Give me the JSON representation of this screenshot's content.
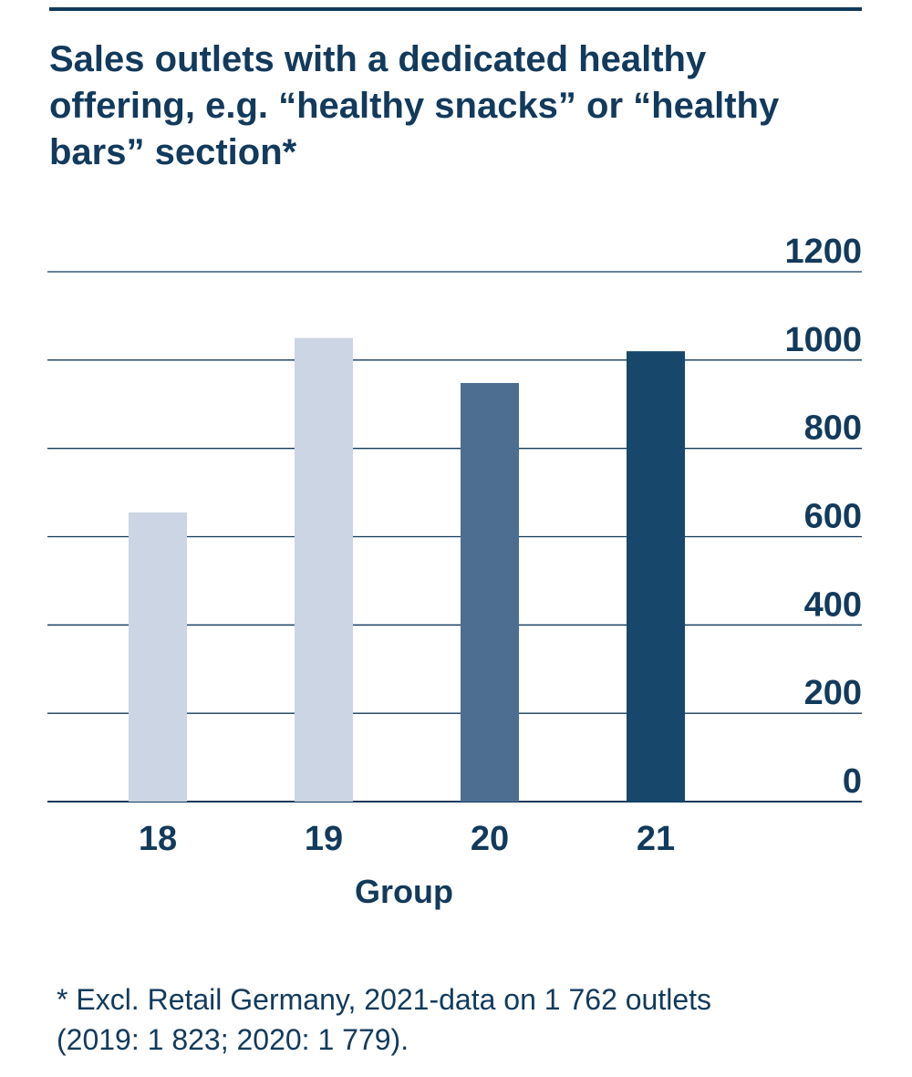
{
  "chart_data": {
    "type": "bar",
    "title": "Sales outlets with a dedicated healthy offering, e.g. “healthy snacks” or “healthy bars” section*",
    "xlabel": "Group",
    "ylabel": "",
    "categories": [
      "18",
      "19",
      "20",
      "21"
    ],
    "values": [
      655,
      1050,
      948,
      1020
    ],
    "colors": [
      "#ccd5e3",
      "#ccd5e3",
      "#4d6e91",
      "#17476b"
    ],
    "ylim": [
      0,
      1200
    ],
    "yticks": [
      "0",
      "200",
      "400",
      "600",
      "800",
      "1000",
      "1200"
    ],
    "y_axis_side": "right",
    "grid": true
  },
  "footnote": {
    "line1": "* Excl. Retail Germany, 2021-data on 1 762 outlets",
    "line2": "(2019: 1 823; 2020: 1 779)."
  },
  "colors": {
    "text": "#123a5c",
    "grid": "#123a5c"
  }
}
